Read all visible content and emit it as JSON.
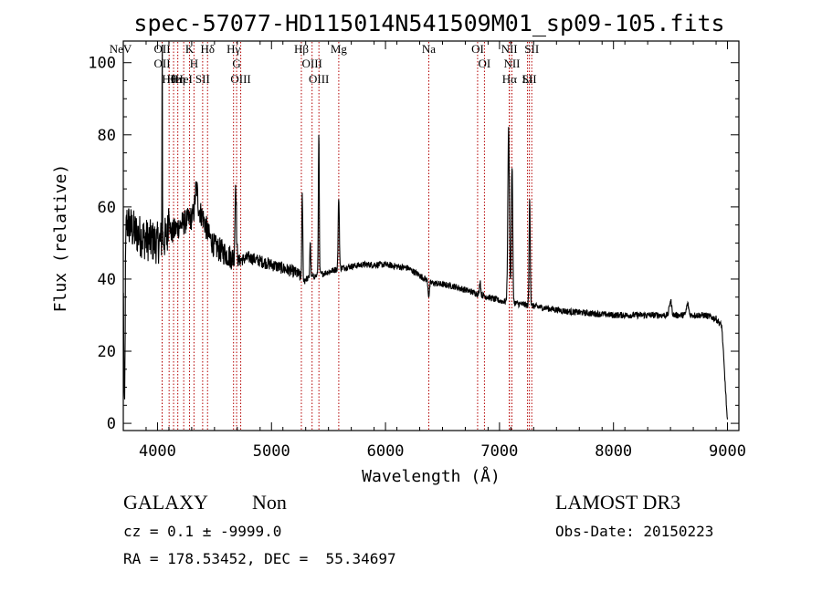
{
  "colors": {
    "spectrum": "#000000",
    "line_marker": "#b40000",
    "axis": "#000000"
  },
  "chart_data": {
    "type": "line",
    "title": "spec-57077-HD115014N541509M01_sp09-105.fits",
    "xlabel": "Wavelength (Å)",
    "ylabel": "Flux (relative)",
    "xlim": [
      3700,
      9100
    ],
    "ylim": [
      -2,
      106
    ],
    "xticks": [
      4000,
      5000,
      6000,
      7000,
      8000,
      9000
    ],
    "yticks": [
      0,
      20,
      40,
      60,
      80,
      100
    ],
    "series": [
      {
        "name": "spectrum",
        "continuum": [
          [
            3700,
            57
          ],
          [
            3800,
            53
          ],
          [
            3900,
            51
          ],
          [
            4000,
            50
          ],
          [
            4100,
            52
          ],
          [
            4200,
            55
          ],
          [
            4300,
            57
          ],
          [
            4350,
            60
          ],
          [
            4400,
            57
          ],
          [
            4450,
            52
          ],
          [
            4500,
            49
          ],
          [
            4600,
            47
          ],
          [
            4700,
            45
          ],
          [
            4800,
            46
          ],
          [
            5000,
            44
          ],
          [
            5100,
            43
          ],
          [
            5200,
            42
          ],
          [
            5300,
            40
          ],
          [
            5400,
            41
          ],
          [
            5500,
            42
          ],
          [
            5600,
            43
          ],
          [
            5800,
            44
          ],
          [
            6000,
            44
          ],
          [
            6200,
            43
          ],
          [
            6300,
            41
          ],
          [
            6400,
            39
          ],
          [
            6600,
            38
          ],
          [
            6800,
            36
          ],
          [
            7000,
            34
          ],
          [
            7200,
            33
          ],
          [
            7400,
            32
          ],
          [
            7600,
            31
          ],
          [
            7800,
            30.5
          ],
          [
            8000,
            30
          ],
          [
            8200,
            30
          ],
          [
            8400,
            30
          ],
          [
            8600,
            30
          ],
          [
            8800,
            30
          ],
          [
            8900,
            29
          ],
          [
            8950,
            27
          ],
          [
            9000,
            0
          ]
        ],
        "features": [
          {
            "x": 3710,
            "amp": -55,
            "w": 6
          },
          {
            "x": 4041,
            "amp": 60,
            "w": 2
          },
          {
            "x": 4101,
            "amp": 8,
            "w": 6
          },
          {
            "x": 4340,
            "amp": 6,
            "w": 10
          },
          {
            "x": 4686,
            "amp": 22,
            "w": 6
          },
          {
            "x": 5270,
            "amp": 28,
            "w": 5
          },
          {
            "x": 5270,
            "amp": -6,
            "w": 8
          },
          {
            "x": 5415,
            "amp": 40,
            "w": 4
          },
          {
            "x": 5340,
            "amp": 10,
            "w": 4
          },
          {
            "x": 5590,
            "amp": 20,
            "w": 5
          },
          {
            "x": 6380,
            "amp": -4,
            "w": 6
          },
          {
            "x": 6830,
            "amp": 4,
            "w": 5
          },
          {
            "x": 7080,
            "amp": 48,
            "w": 7
          },
          {
            "x": 7110,
            "amp": 38,
            "w": 6
          },
          {
            "x": 7265,
            "amp": 30,
            "w": 5
          },
          {
            "x": 8500,
            "amp": 4,
            "w": 10
          },
          {
            "x": 8650,
            "amp": 3,
            "w": 10
          }
        ]
      }
    ],
    "line_markers": [
      {
        "label": "NeV",
        "x": 3426
      },
      {
        "label": "OII",
        "x": 4041
      },
      {
        "label": "OII",
        "x": 4041
      },
      {
        "label": "Hθ",
        "x": 4102
      },
      {
        "label": "Hε",
        "x": 4141
      },
      {
        "label": "Hη",
        "x": 4178
      },
      {
        "label": "HeI",
        "x": 4230
      },
      {
        "label": "K",
        "x": 4281
      },
      {
        "label": "H",
        "x": 4320
      },
      {
        "label": "SII",
        "x": 4396
      },
      {
        "label": "Hδ",
        "x": 4439
      },
      {
        "label": "Hγ",
        "x": 4667
      },
      {
        "label": "G",
        "x": 4694
      },
      {
        "label": "OIII",
        "x": 4730
      },
      {
        "label": "Hβ",
        "x": 5262
      },
      {
        "label": "OIII",
        "x": 5356
      },
      {
        "label": "OIII",
        "x": 5416
      },
      {
        "label": "Mg",
        "x": 5590
      },
      {
        "label": "Na",
        "x": 6380
      },
      {
        "label": "OI",
        "x": 6808
      },
      {
        "label": "OI",
        "x": 6868
      },
      {
        "label": "NII",
        "x": 7086
      },
      {
        "label": "NII",
        "x": 7109
      },
      {
        "label": "Hα",
        "x": 7088
      },
      {
        "label": "Li",
        "x": 7246
      },
      {
        "label": "SII",
        "x": 7262
      },
      {
        "label": "SII",
        "x": 7283
      }
    ]
  },
  "info": {
    "object_class": "GALAXY",
    "subclass": "Non",
    "survey": "LAMOST DR3",
    "redshift_line": "cz = 0.1 ± -9999.0",
    "obs_date": "Obs-Date: 20150223",
    "coords": "RA = 178.53452, DEC =  55.34697"
  }
}
